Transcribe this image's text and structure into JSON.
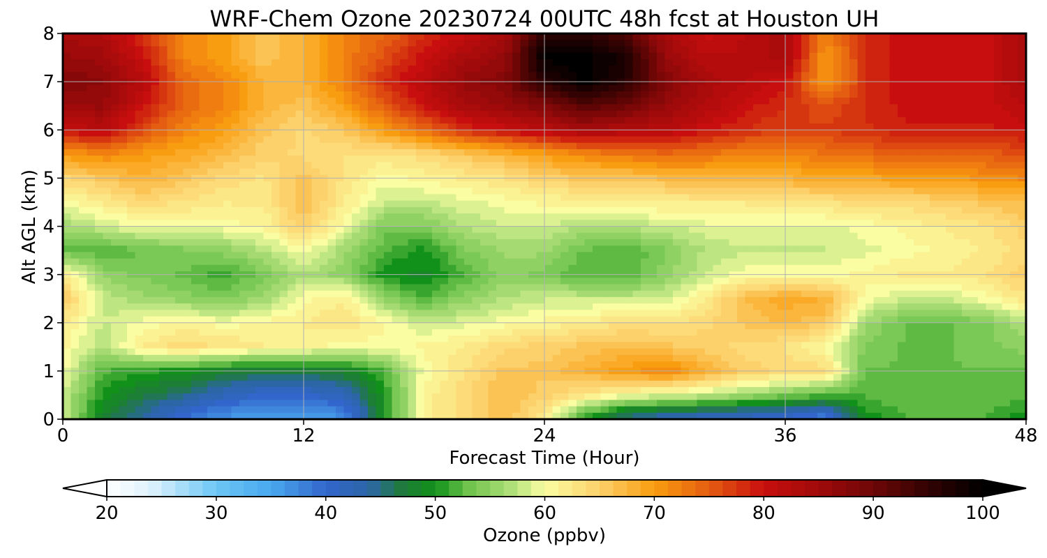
{
  "chart_data": {
    "type": "heatmap",
    "title": "WRF-Chem Ozone  20230724 00UTC 48h fcst at Houston UH",
    "xlabel": "Forecast Time (Hour)",
    "ylabel": "Alt AGL (km)",
    "xlim": [
      0,
      48
    ],
    "ylim": [
      0,
      8
    ],
    "xticks": [
      0,
      12,
      24,
      36,
      48
    ],
    "yticks": [
      0,
      1,
      2,
      3,
      4,
      5,
      6,
      7,
      8
    ],
    "grid": true,
    "x": [
      0,
      2,
      4,
      6,
      8,
      10,
      12,
      14,
      16,
      18,
      20,
      22,
      24,
      26,
      28,
      30,
      32,
      34,
      36,
      38,
      40,
      42,
      44,
      46,
      48
    ],
    "y": [
      0.1,
      0.5,
      1,
      1.5,
      2,
      2.5,
      3,
      3.5,
      4,
      4.5,
      5,
      5.5,
      6,
      6.5,
      7,
      7.5,
      8
    ],
    "z": [
      [
        58,
        48,
        44,
        40,
        37,
        36,
        36,
        37,
        50,
        61,
        64,
        67,
        62,
        52,
        46,
        44,
        43,
        42,
        41,
        39,
        50,
        52,
        52,
        52,
        50
      ],
      [
        58,
        50,
        47,
        45,
        42,
        40,
        40,
        42,
        50,
        61,
        64,
        67,
        65,
        63,
        60,
        59,
        58,
        56,
        54,
        52,
        52,
        53,
        53,
        53,
        52
      ],
      [
        60,
        52,
        51,
        50,
        48,
        47,
        47,
        48,
        52,
        60,
        63,
        66,
        66,
        68,
        70,
        72,
        68,
        65,
        64,
        64,
        53,
        53,
        53,
        53,
        53
      ],
      [
        61,
        57,
        62,
        64,
        63,
        62,
        61,
        60,
        60,
        61,
        62,
        64,
        65,
        66,
        67,
        66,
        65,
        64,
        63,
        60,
        54,
        53,
        53,
        54,
        55
      ],
      [
        62,
        58,
        60,
        61,
        60,
        61,
        62,
        63,
        61,
        58,
        59,
        60,
        61,
        62,
        63,
        63,
        64,
        66,
        67,
        66,
        56,
        53,
        53,
        54,
        57
      ],
      [
        66,
        58,
        56,
        55,
        54,
        56,
        60,
        62,
        55,
        52,
        55,
        57,
        58,
        58,
        58,
        58,
        62,
        67,
        69,
        68,
        60,
        58,
        58,
        60,
        63
      ],
      [
        62,
        55,
        54,
        53,
        51,
        54,
        57,
        55,
        50,
        49,
        52,
        55,
        54,
        52,
        52,
        55,
        58,
        60,
        60,
        60,
        61,
        62,
        62,
        63,
        65
      ],
      [
        53,
        52,
        53,
        54,
        55,
        57,
        60,
        56,
        52,
        50,
        54,
        56,
        56,
        53,
        52,
        54,
        57,
        58,
        58,
        58,
        59,
        60,
        61,
        62,
        64
      ],
      [
        56,
        58,
        60,
        60,
        60,
        61,
        65,
        60,
        54,
        54,
        57,
        58,
        58,
        57,
        57,
        58,
        59,
        59,
        59,
        59,
        60,
        61,
        62,
        63,
        65
      ],
      [
        60,
        62,
        64,
        63,
        62,
        62,
        67,
        62,
        58,
        58,
        59,
        60,
        61,
        61,
        62,
        62,
        62,
        62,
        63,
        63,
        64,
        64,
        65,
        66,
        67
      ],
      [
        64,
        66,
        68,
        66,
        64,
        63,
        66,
        63,
        60,
        61,
        62,
        63,
        65,
        66,
        66,
        67,
        68,
        68,
        68,
        69,
        69,
        70,
        70,
        71,
        72
      ],
      [
        70,
        72,
        70,
        69,
        67,
        65,
        64,
        63,
        63,
        64,
        66,
        68,
        70,
        72,
        73,
        74,
        73,
        72,
        72,
        73,
        74,
        75,
        75,
        75,
        76
      ],
      [
        80,
        82,
        76,
        72,
        70,
        66,
        64,
        66,
        70,
        74,
        78,
        80,
        82,
        84,
        83,
        82,
        80,
        78,
        77,
        77,
        78,
        79,
        79,
        79,
        80
      ],
      [
        85,
        86,
        80,
        74,
        72,
        68,
        66,
        70,
        75,
        80,
        84,
        86,
        88,
        92,
        90,
        86,
        83,
        80,
        78,
        76,
        78,
        80,
        80,
        80,
        82
      ],
      [
        88,
        87,
        82,
        74,
        72,
        68,
        68,
        72,
        78,
        82,
        86,
        88,
        96,
        100,
        96,
        88,
        84,
        82,
        80,
        70,
        78,
        80,
        80,
        80,
        84
      ],
      [
        86,
        85,
        80,
        72,
        70,
        66,
        68,
        72,
        76,
        80,
        84,
        86,
        100,
        100,
        98,
        86,
        82,
        82,
        84,
        70,
        78,
        80,
        80,
        80,
        84
      ],
      [
        84,
        83,
        78,
        72,
        70,
        66,
        68,
        72,
        74,
        78,
        80,
        84,
        96,
        96,
        92,
        84,
        80,
        82,
        84,
        72,
        78,
        80,
        80,
        80,
        84
      ]
    ],
    "colorbar": {
      "label": "Ozone  (ppbv)",
      "min": 20,
      "max": 100,
      "ticks": [
        20,
        30,
        40,
        50,
        60,
        70,
        80,
        90,
        100
      ],
      "extend": "both",
      "position": "bottom",
      "stops": [
        {
          "v": 20,
          "c": "#ffffff"
        },
        {
          "v": 24,
          "c": "#dff2fd"
        },
        {
          "v": 30,
          "c": "#6cc6f5"
        },
        {
          "v": 35,
          "c": "#49a8ee"
        },
        {
          "v": 40,
          "c": "#3366cc"
        },
        {
          "v": 44,
          "c": "#2b66a5"
        },
        {
          "v": 47,
          "c": "#1f7a3a"
        },
        {
          "v": 50,
          "c": "#119119"
        },
        {
          "v": 53,
          "c": "#6ec24c"
        },
        {
          "v": 57,
          "c": "#b0e07a"
        },
        {
          "v": 60,
          "c": "#fbfda2"
        },
        {
          "v": 65,
          "c": "#fcd06a"
        },
        {
          "v": 70,
          "c": "#f99d10"
        },
        {
          "v": 75,
          "c": "#e45d10"
        },
        {
          "v": 80,
          "c": "#c80e0e"
        },
        {
          "v": 85,
          "c": "#a00a0a"
        },
        {
          "v": 90,
          "c": "#6e0606"
        },
        {
          "v": 95,
          "c": "#330202"
        },
        {
          "v": 100,
          "c": "#000000"
        }
      ]
    }
  }
}
